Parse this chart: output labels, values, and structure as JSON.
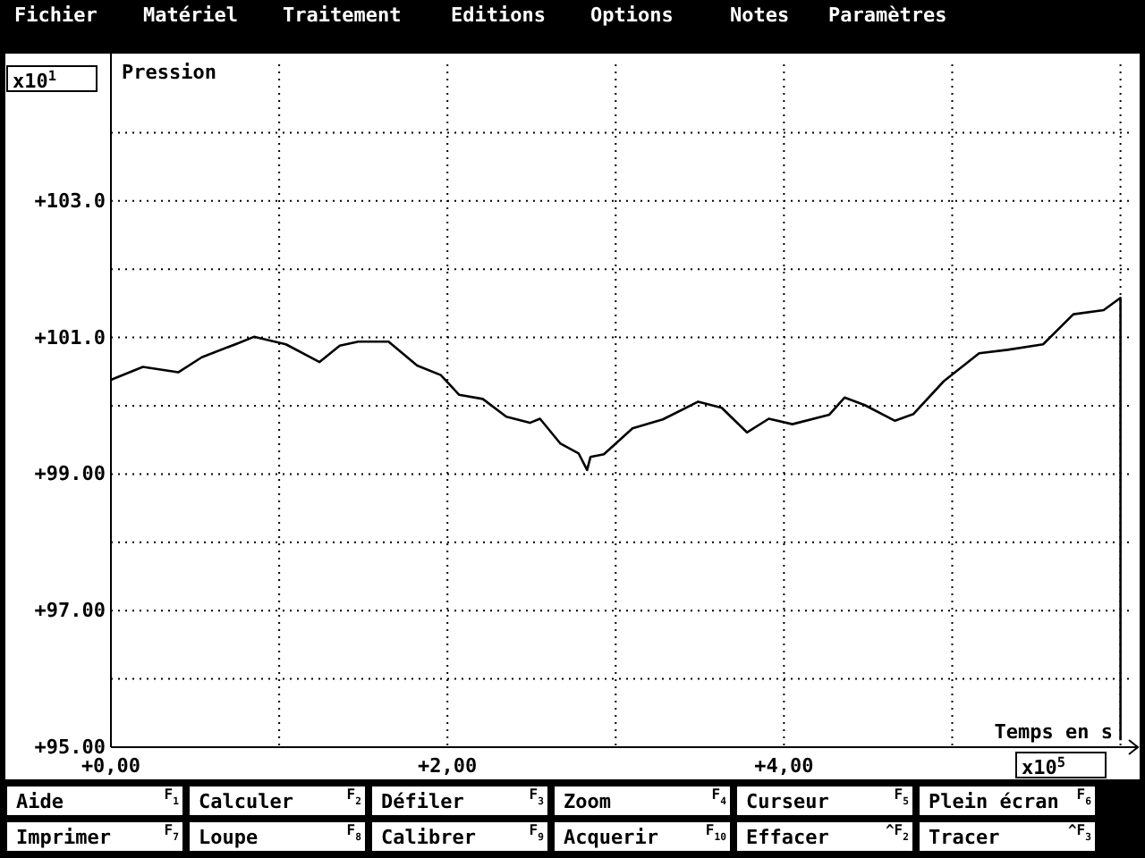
{
  "chart_data": {
    "type": "line",
    "xlabel": "Temps en s",
    "ylabel": "Pression",
    "xlim": [
      0,
      6.05
    ],
    "ylim": [
      95,
      105
    ],
    "xticks": [
      {
        "value": 0,
        "label": "+0,00"
      },
      {
        "value": 1,
        "label": null
      },
      {
        "value": 2,
        "label": "+2,00"
      },
      {
        "value": 3,
        "label": null
      },
      {
        "value": 4,
        "label": "+4,00"
      },
      {
        "value": 5,
        "label": null
      },
      {
        "value": 6,
        "label": null
      }
    ],
    "yticks": [
      {
        "value": 95,
        "label": "+95.00"
      },
      {
        "value": 96,
        "label": null
      },
      {
        "value": 97,
        "label": "+97.00"
      },
      {
        "value": 98,
        "label": null
      },
      {
        "value": 99,
        "label": "+99.00"
      },
      {
        "value": 100,
        "label": null
      },
      {
        "value": 101,
        "label": "+101.0"
      },
      {
        "value": 102,
        "label": null
      },
      {
        "value": 103,
        "label": "+103.0"
      },
      {
        "value": 104,
        "label": null
      }
    ],
    "grid": true,
    "marker": "none",
    "line_style": "solid",
    "series": [
      {
        "color": "#000000",
        "x": [
          0,
          0.19,
          0.4,
          0.54,
          0.76,
          0.85,
          1.04,
          1.24,
          1.36,
          1.47,
          1.65,
          1.82,
          1.96,
          2.07,
          2.21,
          2.35,
          2.49,
          2.55,
          2.67,
          2.78,
          2.83,
          2.85,
          2.93,
          3.1,
          3.28,
          3.49,
          3.63,
          3.78,
          3.91,
          4.05,
          4.27,
          4.36,
          4.48,
          4.66,
          4.77,
          4.95,
          5.16,
          5.33,
          5.54,
          5.72,
          5.9,
          6.0,
          6.0
        ],
        "values": [
          100.38,
          100.57,
          100.49,
          100.71,
          100.92,
          101.01,
          100.9,
          100.64,
          100.88,
          100.94,
          100.94,
          100.59,
          100.45,
          100.16,
          100.1,
          99.84,
          99.75,
          99.81,
          99.45,
          99.3,
          99.06,
          99.25,
          99.29,
          99.67,
          99.8,
          100.06,
          99.97,
          99.61,
          99.81,
          99.73,
          99.87,
          100.12,
          100.01,
          99.78,
          99.88,
          100.36,
          100.77,
          100.82,
          100.9,
          101.34,
          101.4,
          101.58,
          95.1
        ]
      }
    ],
    "annotations": [
      "x10$^{1}$",
      "x10$^{5}$",
      "Fichier",
      "Matériel",
      "Traitement",
      "Editions",
      "Options",
      "Notes",
      "Paramètres",
      "Aide",
      "F$_{1}$",
      "Calculer",
      "F$_{2}$",
      "Défiler",
      "F$_{3}$",
      "Zoom",
      "F$_{4}$",
      "Curseur",
      "F$_{5}$",
      "Plein écran",
      "F$_{6}$",
      "Imprimer",
      "F$_{7}$",
      "Loupe",
      "F$_{8}$",
      "Calibrer",
      "F$_{9}$",
      "Acquerir",
      "F$_{10}$",
      "Effacer",
      "^F$_{2}$",
      "Tracer",
      "^F$_{3}$"
    ]
  }
}
